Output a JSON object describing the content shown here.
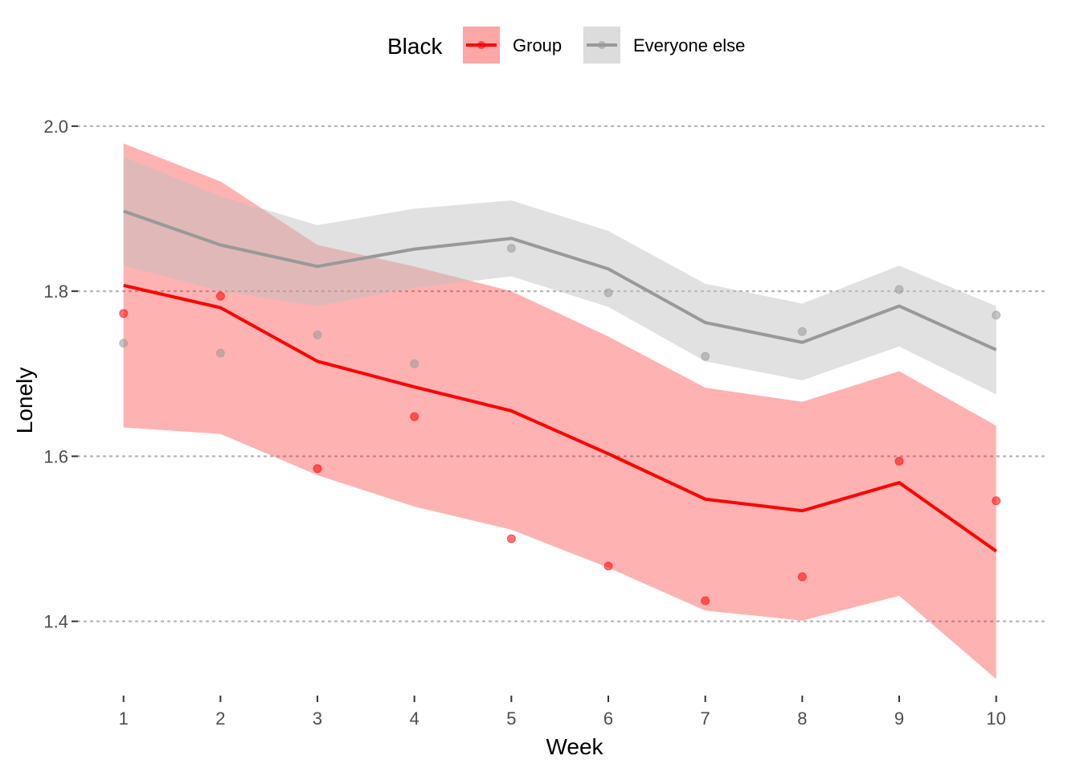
{
  "chart_data": {
    "type": "line",
    "title": "",
    "xlabel": "Week",
    "ylabel": "Lonely",
    "x": [
      1,
      2,
      3,
      4,
      5,
      6,
      7,
      8,
      9,
      10
    ],
    "x_ticks": [
      "1",
      "2",
      "3",
      "4",
      "5",
      "6",
      "7",
      "8",
      "9",
      "10"
    ],
    "y_ticks": [
      "1.4",
      "1.6",
      "1.8",
      "2.0"
    ],
    "y_tick_values": [
      1.4,
      1.6,
      1.8,
      2.0
    ],
    "xlim": [
      0.53,
      10.5
    ],
    "ylim": [
      1.31,
      2.07
    ],
    "grid": "horizontal dotted",
    "legend": {
      "title": "Black",
      "position": "top"
    },
    "series": [
      {
        "name": "Group",
        "color": "#ff0000",
        "ribbon_color": "#ff0000",
        "fit": [
          1.807,
          1.78,
          1.715,
          1.684,
          1.655,
          1.603,
          1.548,
          1.534,
          1.568,
          1.485
        ],
        "lower": [
          1.635,
          1.627,
          1.577,
          1.539,
          1.511,
          1.465,
          1.413,
          1.401,
          1.431,
          1.33
        ],
        "upper": [
          1.979,
          1.933,
          1.856,
          1.83,
          1.8,
          1.745,
          1.683,
          1.666,
          1.703,
          1.637
        ],
        "observed": [
          1.773,
          1.794,
          1.585,
          1.648,
          1.5,
          1.467,
          1.425,
          1.454,
          1.594,
          1.546
        ]
      },
      {
        "name": "Everyone else",
        "color": "#999999",
        "ribbon_color": "#bfbfbf",
        "fit": [
          1.897,
          1.856,
          1.83,
          1.851,
          1.864,
          1.827,
          1.762,
          1.738,
          1.782,
          1.729
        ],
        "lower": [
          1.831,
          1.8,
          1.782,
          1.804,
          1.818,
          1.781,
          1.715,
          1.692,
          1.733,
          1.675
        ],
        "upper": [
          1.963,
          1.915,
          1.88,
          1.9,
          1.91,
          1.873,
          1.809,
          1.785,
          1.831,
          1.782
        ],
        "observed": [
          1.737,
          1.725,
          1.747,
          1.712,
          1.852,
          1.798,
          1.721,
          1.751,
          1.802,
          1.771
        ]
      }
    ]
  }
}
